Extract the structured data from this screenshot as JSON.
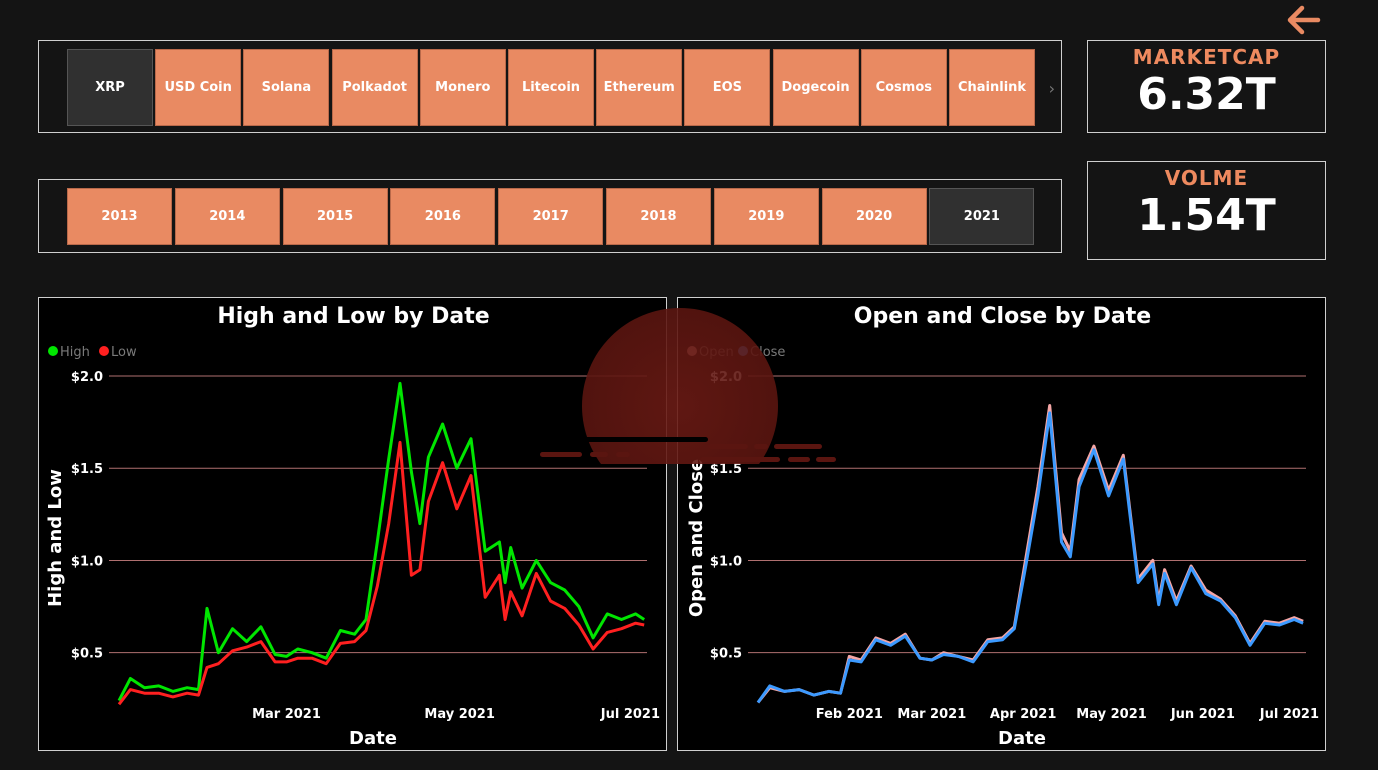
{
  "coins": [
    "XRP",
    "USD Coin",
    "Solana",
    "Polkadot",
    "Monero",
    "Litecoin",
    "Ethereum",
    "EOS",
    "Dogecoin",
    "Cosmos",
    "Chainlink"
  ],
  "selected_coin": "XRP",
  "years": [
    "2013",
    "2014",
    "2015",
    "2016",
    "2017",
    "2018",
    "2019",
    "2020",
    "2021"
  ],
  "selected_year": "2021",
  "cards": {
    "marketcap": {
      "label": "MARKETCAP",
      "value": "6.32T"
    },
    "volume": {
      "label": "VOLME",
      "value": "1.54T"
    }
  },
  "colors": {
    "accent": "#e98a62",
    "high": "#00e600",
    "low": "#ff2020",
    "open": "#f4a6a6",
    "close": "#3c9aff",
    "gridline": "#b07070"
  },
  "icons": {
    "back": "left-arrow-icon",
    "scroll": "chevron-right-icon"
  },
  "chart_data": [
    {
      "type": "line",
      "title": "High and Low by Date",
      "xlabel": "Date",
      "ylabel": "High and Low",
      "ylim": [
        0.2,
        2.0
      ],
      "xlim": [
        "2021-01-01",
        "2021-07-06"
      ],
      "yticks": [
        "$0.5",
        "$1.0",
        "$1.5",
        "$2.0"
      ],
      "xticks": [
        "Mar 2021",
        "May 2021",
        "Jul 2021"
      ],
      "legend": "top-left",
      "grid": true,
      "x": [
        "2021-01-01",
        "2021-01-05",
        "2021-01-10",
        "2021-01-15",
        "2021-01-20",
        "2021-01-25",
        "2021-01-29",
        "2021-02-01",
        "2021-02-05",
        "2021-02-10",
        "2021-02-15",
        "2021-02-20",
        "2021-02-25",
        "2021-03-01",
        "2021-03-05",
        "2021-03-10",
        "2021-03-15",
        "2021-03-20",
        "2021-03-25",
        "2021-03-29",
        "2021-04-02",
        "2021-04-06",
        "2021-04-10",
        "2021-04-14",
        "2021-04-17",
        "2021-04-20",
        "2021-04-25",
        "2021-04-30",
        "2021-05-05",
        "2021-05-10",
        "2021-05-15",
        "2021-05-17",
        "2021-05-19",
        "2021-05-23",
        "2021-05-28",
        "2021-06-02",
        "2021-06-07",
        "2021-06-12",
        "2021-06-17",
        "2021-06-22",
        "2021-06-27",
        "2021-07-02",
        "2021-07-05"
      ],
      "series": [
        {
          "name": "High",
          "values": [
            0.24,
            0.36,
            0.31,
            0.32,
            0.29,
            0.31,
            0.3,
            0.74,
            0.5,
            0.63,
            0.56,
            0.64,
            0.49,
            0.48,
            0.52,
            0.5,
            0.47,
            0.62,
            0.6,
            0.68,
            1.1,
            1.55,
            1.96,
            1.48,
            1.2,
            1.56,
            1.74,
            1.5,
            1.66,
            1.05,
            1.1,
            0.88,
            1.07,
            0.85,
            1.0,
            0.88,
            0.84,
            0.75,
            0.58,
            0.71,
            0.68,
            0.71,
            0.68
          ]
        },
        {
          "name": "Low",
          "values": [
            0.22,
            0.3,
            0.28,
            0.28,
            0.26,
            0.28,
            0.27,
            0.42,
            0.44,
            0.51,
            0.53,
            0.56,
            0.45,
            0.45,
            0.47,
            0.47,
            0.44,
            0.55,
            0.56,
            0.62,
            0.86,
            1.2,
            1.64,
            0.92,
            0.95,
            1.32,
            1.53,
            1.28,
            1.46,
            0.8,
            0.92,
            0.68,
            0.83,
            0.7,
            0.93,
            0.78,
            0.74,
            0.65,
            0.52,
            0.61,
            0.63,
            0.66,
            0.65
          ]
        }
      ]
    },
    {
      "type": "line",
      "title": "Open and Close by Date",
      "xlabel": "Date",
      "ylabel": "Open and Close",
      "ylim": [
        0.2,
        2.0
      ],
      "xlim": [
        "2021-01-01",
        "2021-07-06"
      ],
      "yticks": [
        "$0.5",
        "$1.0",
        "$1.5",
        "$2.0"
      ],
      "xticks": [
        "Feb 2021",
        "Mar 2021",
        "Apr 2021",
        "May 2021",
        "Jun 2021",
        "Jul 2021"
      ],
      "legend": "top-left",
      "grid": true,
      "x": [
        "2021-01-01",
        "2021-01-05",
        "2021-01-10",
        "2021-01-15",
        "2021-01-20",
        "2021-01-25",
        "2021-01-29",
        "2021-02-01",
        "2021-02-05",
        "2021-02-10",
        "2021-02-15",
        "2021-02-20",
        "2021-02-25",
        "2021-03-01",
        "2021-03-05",
        "2021-03-10",
        "2021-03-15",
        "2021-03-20",
        "2021-03-25",
        "2021-03-29",
        "2021-04-02",
        "2021-04-06",
        "2021-04-10",
        "2021-04-14",
        "2021-04-17",
        "2021-04-20",
        "2021-04-25",
        "2021-04-30",
        "2021-05-05",
        "2021-05-10",
        "2021-05-15",
        "2021-05-17",
        "2021-05-19",
        "2021-05-23",
        "2021-05-28",
        "2021-06-02",
        "2021-06-07",
        "2021-06-12",
        "2021-06-17",
        "2021-06-22",
        "2021-06-27",
        "2021-07-02",
        "2021-07-05"
      ],
      "series": [
        {
          "name": "Open",
          "values": [
            0.23,
            0.31,
            0.29,
            0.3,
            0.27,
            0.29,
            0.28,
            0.48,
            0.46,
            0.58,
            0.55,
            0.6,
            0.47,
            0.46,
            0.5,
            0.48,
            0.46,
            0.57,
            0.58,
            0.64,
            1.02,
            1.4,
            1.84,
            1.15,
            1.05,
            1.44,
            1.62,
            1.38,
            1.57,
            0.9,
            1.0,
            0.78,
            0.95,
            0.78,
            0.97,
            0.84,
            0.79,
            0.7,
            0.55,
            0.67,
            0.66,
            0.69,
            0.67
          ]
        },
        {
          "name": "Close",
          "values": [
            0.23,
            0.32,
            0.29,
            0.3,
            0.27,
            0.29,
            0.28,
            0.46,
            0.45,
            0.57,
            0.54,
            0.59,
            0.47,
            0.46,
            0.49,
            0.48,
            0.45,
            0.56,
            0.57,
            0.63,
            0.98,
            1.35,
            1.8,
            1.1,
            1.02,
            1.4,
            1.6,
            1.35,
            1.55,
            0.88,
            0.98,
            0.76,
            0.93,
            0.76,
            0.96,
            0.82,
            0.78,
            0.69,
            0.54,
            0.66,
            0.65,
            0.68,
            0.66
          ]
        }
      ]
    }
  ]
}
